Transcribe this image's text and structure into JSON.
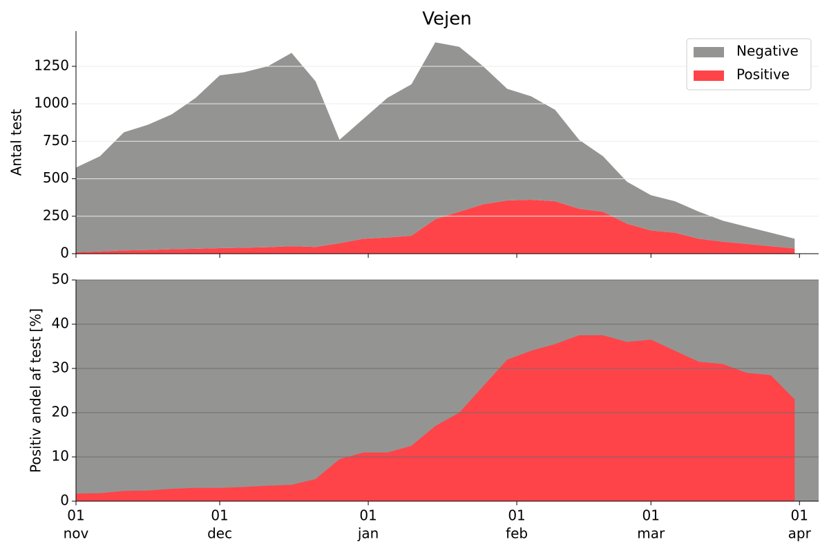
{
  "chart_data": [
    {
      "type": "stacked_area",
      "title": "Vejen",
      "ylabel": "Antal test",
      "x": [
        "11-01",
        "11-06",
        "11-11",
        "11-16",
        "11-21",
        "11-26",
        "12-01",
        "12-06",
        "12-11",
        "12-16",
        "12-21",
        "12-26",
        "12-31",
        "01-05",
        "01-10",
        "01-15",
        "01-20",
        "01-25",
        "01-30",
        "02-04",
        "02-09",
        "02-14",
        "02-19",
        "02-24",
        "03-01",
        "03-06",
        "03-11",
        "03-16",
        "03-21",
        "03-26",
        "03-31"
      ],
      "series": [
        {
          "name": "Positive",
          "color": "#ff4449",
          "values": [
            10,
            15,
            22,
            25,
            30,
            33,
            37,
            40,
            43,
            50,
            45,
            70,
            100,
            108,
            120,
            230,
            280,
            330,
            355,
            360,
            350,
            300,
            280,
            200,
            155,
            140,
            100,
            80,
            65,
            50,
            35
          ]
        },
        {
          "name": "Negative",
          "color": "#949593",
          "values": [
            565,
            635,
            788,
            835,
            900,
            1007,
            1153,
            1170,
            1207,
            1290,
            1105,
            690,
            800,
            932,
            1010,
            1180,
            1100,
            920,
            745,
            690,
            610,
            460,
            370,
            280,
            235,
            210,
            180,
            140,
            115,
            90,
            65
          ]
        }
      ],
      "legend": "upper right",
      "xlim": [
        "11-01",
        "04-05"
      ],
      "xticks": [
        "11-01",
        "12-01",
        "01-01",
        "02-01",
        "03-01",
        "04-01"
      ],
      "ylim": [
        0,
        1485
      ],
      "yticks": [
        0,
        250,
        500,
        750,
        1000,
        1250
      ],
      "grid": true
    },
    {
      "type": "area",
      "ylabel": "Positiv andel af test [%]",
      "x": [
        "11-01",
        "11-06",
        "11-11",
        "11-16",
        "11-21",
        "11-26",
        "12-01",
        "12-06",
        "12-11",
        "12-16",
        "12-21",
        "12-26",
        "12-31",
        "01-05",
        "01-10",
        "01-15",
        "01-20",
        "01-25",
        "01-30",
        "02-04",
        "02-09",
        "02-14",
        "02-19",
        "02-24",
        "03-01",
        "03-06",
        "03-11",
        "03-16",
        "03-21",
        "03-26",
        "03-31"
      ],
      "values": [
        1.7,
        1.8,
        2.3,
        2.4,
        2.8,
        3.0,
        3.0,
        3.2,
        3.5,
        3.7,
        5.0,
        9.5,
        11,
        11,
        12.5,
        17,
        20,
        26,
        32,
        34,
        35.5,
        37.5,
        37.5,
        36,
        36.5,
        34,
        31.5,
        31,
        29,
        28.5,
        23
      ],
      "color": "#ff4449",
      "background_color": "#949593",
      "xlim": [
        "11-01",
        "04-05"
      ],
      "xticks": [
        {
          "value": "11-01",
          "label": [
            "01",
            "nov"
          ]
        },
        {
          "value": "12-01",
          "label": [
            "01",
            "dec"
          ]
        },
        {
          "value": "01-01",
          "label": [
            "01",
            "jan"
          ]
        },
        {
          "value": "02-01",
          "label": [
            "01",
            "feb"
          ]
        },
        {
          "value": "03-01",
          "label": [
            "01",
            "mar"
          ]
        },
        {
          "value": "04-01",
          "label": [
            "01",
            "apr"
          ]
        }
      ],
      "ylim": [
        0,
        50
      ],
      "yticks": [
        0,
        10,
        20,
        30,
        40,
        50
      ],
      "grid": true
    }
  ]
}
